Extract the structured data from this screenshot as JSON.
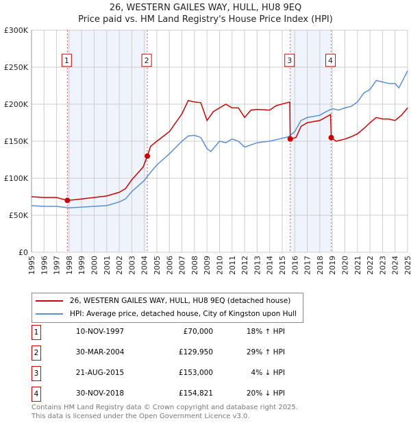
{
  "chart_data": {
    "type": "line",
    "title": "26, WESTERN GAILES WAY, HULL, HU8 9EQ",
    "subtitle": "Price paid vs. HM Land Registry's House Price Index (HPI)",
    "xlim": [
      1995,
      2025
    ],
    "ylim": [
      0,
      300000
    ],
    "y_ticks": [
      "£0",
      "£50K",
      "£100K",
      "£150K",
      "£200K",
      "£250K",
      "£300K"
    ],
    "y_tick_values": [
      0,
      50000,
      100000,
      150000,
      200000,
      250000,
      300000
    ],
    "x_ticks": [
      "1995",
      "1996",
      "1997",
      "1998",
      "1999",
      "2000",
      "2001",
      "2002",
      "2003",
      "2004",
      "2005",
      "2006",
      "2007",
      "2008",
      "2009",
      "2010",
      "2011",
      "2012",
      "2013",
      "2014",
      "2015",
      "2016",
      "2017",
      "2018",
      "2019",
      "2020",
      "2021",
      "2022",
      "2023",
      "2024",
      "2025"
    ],
    "grid": true,
    "colors": {
      "property": "#cc0000",
      "hpi": "#5b8fd0",
      "band": "#eef3fc"
    },
    "series": [
      {
        "name": "26, WESTERN GAILES WAY, HULL, HU8 9EQ (detached house)",
        "color": "#cc0000",
        "x": [
          1995,
          1996,
          1997,
          1997.86,
          1998.5,
          1999,
          2000,
          2001,
          2002,
          2002.5,
          2003,
          2003.9,
          2004.24,
          2004.5,
          2005,
          2006,
          2006.5,
          2007,
          2007.5,
          2008,
          2008.5,
          2009,
          2009.5,
          2010,
          2010.5,
          2011,
          2011.5,
          2012,
          2012.5,
          2013,
          2014,
          2014.5,
          2015.6,
          2015.64,
          2016.1,
          2016.5,
          2017,
          2018,
          2018.85,
          2018.91,
          2019.3,
          2020,
          2020.5,
          2021,
          2021.5,
          2022,
          2022.5,
          2023,
          2023.5,
          2024,
          2024.5,
          2025
        ],
        "y": [
          75000,
          74000,
          74000,
          70000,
          71000,
          72000,
          74000,
          76000,
          81000,
          86000,
          98000,
          115000,
          129950,
          143000,
          150000,
          163000,
          175000,
          187000,
          205000,
          203000,
          202000,
          178000,
          190000,
          195000,
          200000,
          195000,
          195000,
          182000,
          192000,
          193000,
          192000,
          198000,
          203000,
          153000,
          155000,
          170000,
          175000,
          178000,
          186000,
          154821,
          150000,
          153000,
          156000,
          160000,
          167000,
          175000,
          182000,
          180000,
          180000,
          178000,
          185000,
          195000
        ]
      },
      {
        "name": "HPI: Average price, detached house, City of Kingston upon Hull",
        "color": "#5b8fd0",
        "x": [
          1995,
          1996,
          1997,
          1998,
          1999,
          2000,
          2001,
          2002,
          2002.5,
          2003,
          2004,
          2004.5,
          2005,
          2006,
          2007,
          2007.5,
          2008,
          2008.5,
          2009,
          2009.3,
          2010,
          2010.5,
          2011,
          2011.5,
          2012,
          2012.5,
          2013,
          2014,
          2015,
          2015.5,
          2016,
          2016.5,
          2017,
          2018,
          2018.5,
          2019,
          2019.5,
          2020,
          2020.5,
          2021,
          2021.5,
          2022,
          2022.5,
          2023,
          2023.5,
          2024,
          2024.3,
          2024.7,
          2025
        ],
        "y": [
          63000,
          62000,
          62000,
          60000,
          61000,
          62000,
          63000,
          68000,
          72000,
          82000,
          97000,
          108000,
          118000,
          133000,
          150000,
          157000,
          158000,
          155000,
          140000,
          136000,
          150000,
          148000,
          153000,
          150000,
          142000,
          145000,
          148000,
          150000,
          154000,
          156000,
          163000,
          178000,
          182000,
          185000,
          190000,
          194000,
          192000,
          195000,
          197000,
          203000,
          215000,
          220000,
          232000,
          230000,
          228000,
          228000,
          222000,
          235000,
          245000
        ]
      }
    ],
    "sales": [
      {
        "label": "1",
        "x": 1997.86,
        "date": "10-NOV-1997",
        "price": 70000,
        "price_text": "£70,000",
        "hpi_text": "18% ↑ HPI"
      },
      {
        "label": "2",
        "x": 2004.24,
        "date": "30-MAR-2004",
        "price": 129950,
        "price_text": "£129,950",
        "hpi_text": "29% ↑ HPI"
      },
      {
        "label": "3",
        "x": 2015.64,
        "date": "21-AUG-2015",
        "price": 153000,
        "price_text": "£153,000",
        "hpi_text": "4% ↓ HPI"
      },
      {
        "label": "4",
        "x": 2018.91,
        "date": "30-NOV-2018",
        "price": 154821,
        "price_text": "£154,821",
        "hpi_text": "20% ↓ HPI"
      }
    ],
    "legend_placement": "below"
  },
  "footer": {
    "line1": "Contains HM Land Registry data © Crown copyright and database right 2025.",
    "line2": "This data is licensed under the Open Government Licence v3.0."
  }
}
